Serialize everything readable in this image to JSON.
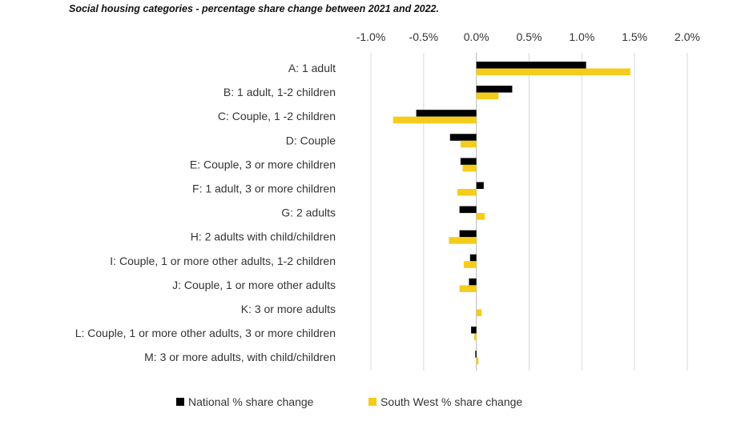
{
  "chart_data": {
    "type": "bar",
    "orientation": "horizontal",
    "title": "Social housing categories - percentage share change between 2021 and 2022.",
    "xlabel": "",
    "ylabel": "",
    "xlim": [
      -0.01,
      0.02
    ],
    "x_ticks": [
      -0.01,
      -0.005,
      0,
      0.005,
      0.01,
      0.015,
      0.02
    ],
    "x_tick_labels": [
      "-1.0%",
      "-0.5%",
      "0.0%",
      "0.5%",
      "1.0%",
      "1.5%",
      "2.0%"
    ],
    "x_axis_position": "top",
    "grid": "vertical gridlines",
    "legend_position": "bottom",
    "categories": [
      "A: 1 adult",
      "B: 1 adult, 1-2 children",
      "C: Couple, 1 -2 children",
      "D: Couple",
      "E: Couple, 3 or more children",
      "F: 1 adult, 3 or more children",
      "G: 2 adults",
      "H: 2 adults with child/children",
      "I: Couple, 1 or more other adults, 1-2 children",
      "J: Couple, 1 or more other adults",
      "K: 3 or more adults",
      "L: Couple, 1 or more other adults, 3 or more children",
      "M: 3 or more adults, with child/children"
    ],
    "series": [
      {
        "name": "National % share change",
        "color": "#000000",
        "values": [
          0.0104,
          0.0034,
          -0.0057,
          -0.0025,
          -0.0015,
          0.0007,
          -0.0016,
          -0.0016,
          -0.0006,
          -0.0007,
          0.0,
          -0.0005,
          -0.0001
        ]
      },
      {
        "name": "South West % share change",
        "color": "#f5cc1b",
        "values": [
          0.0146,
          0.0021,
          -0.0079,
          -0.0015,
          -0.0013,
          -0.0018,
          0.0008,
          -0.0026,
          -0.0012,
          -0.0016,
          0.0005,
          -0.0002,
          0.0002
        ]
      }
    ]
  }
}
